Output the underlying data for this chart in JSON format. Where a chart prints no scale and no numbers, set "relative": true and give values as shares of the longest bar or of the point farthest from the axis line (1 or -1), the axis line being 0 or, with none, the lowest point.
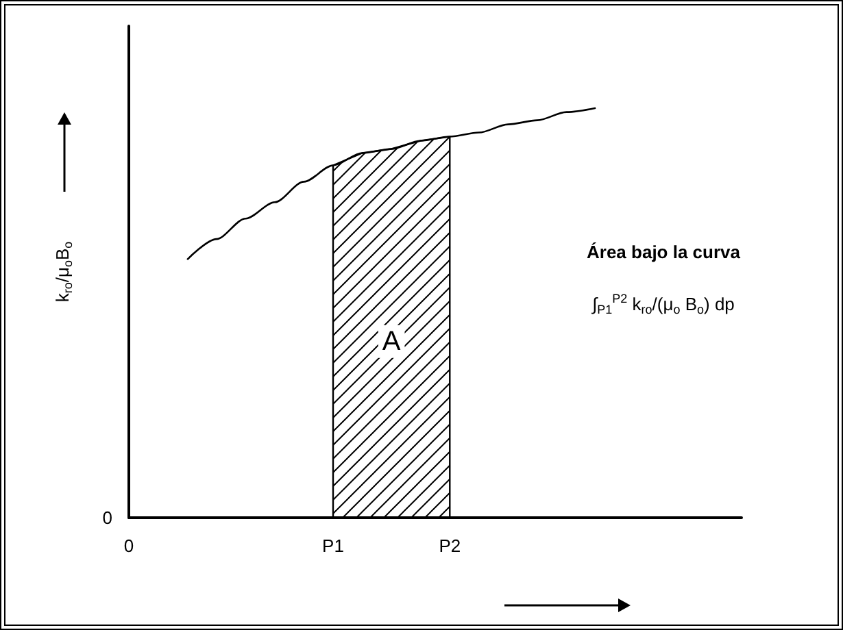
{
  "chart_data": {
    "type": "line",
    "relative": true,
    "ylabel": "k$_{ro}$/μ$_{o}$B$_{o}$",
    "categories": [
      "0",
      null,
      null,
      null,
      null,
      null,
      null,
      "P1",
      null,
      null,
      null,
      "P2",
      null,
      null,
      null,
      null,
      null,
      null,
      null,
      null,
      null,
      null
    ],
    "series": [
      {
        "color": "#000000",
        "values": [
          null,
          null,
          0.63,
          0.68,
          0.73,
          0.77,
          0.82,
          0.86,
          0.89,
          0.9,
          0.92,
          0.93,
          0.94,
          0.96,
          0.97,
          0.99,
          1,
          null,
          null,
          null,
          null,
          null
        ]
      },
      {
        "type": "area",
        "name": "A",
        "color": "#000000",
        "values": [
          null,
          null,
          null,
          null,
          null,
          null,
          null,
          0.86,
          0.89,
          0.9,
          0.92,
          0.93,
          null,
          null,
          null,
          null,
          null,
          null,
          null,
          null,
          null,
          null
        ]
      }
    ],
    "annotations": [
      "0",
      "Área bajo la curva",
      "∫$_{P1}$$^{P2}$ k$_{ro}$/(μ$_{o}$ B$_{o}$) dp"
    ],
    "grid": false,
    "legend": false,
    "marker": "none",
    "line_style": "solid"
  }
}
